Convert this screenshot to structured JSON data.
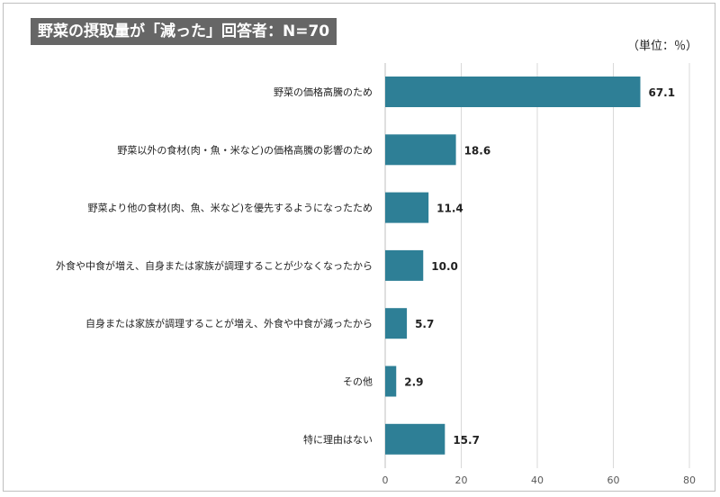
{
  "header": {
    "title": "野菜の摂取量が「減った」回答者：N=70",
    "unit": "（単位：％）"
  },
  "colors": {
    "bar": "#2e7f96",
    "grid": "#d9d9d9",
    "axis": "#bfbfbf"
  },
  "chart_data": {
    "type": "bar",
    "orientation": "horizontal",
    "categories": [
      "野菜の価格高騰のため",
      "野菜以外の食材(肉・魚・米など)の価格高騰の影響のため",
      "野菜より他の食材(肉、魚、米など)を優先するようになったため",
      "外食や中食が増え、自身または家族が調理することが少なくなったから",
      "自身または家族が調理することが増え、外食や中食が減ったから",
      "その他",
      "特に理由はない"
    ],
    "values": [
      67.1,
      18.6,
      11.4,
      10.0,
      5.7,
      2.9,
      15.7
    ],
    "value_labels": [
      "67.1",
      "18.6",
      "11.4",
      "10.0",
      "5.7",
      "2.9",
      "15.7"
    ],
    "xlim": [
      0,
      80
    ],
    "xticks": [
      0,
      20,
      40,
      60,
      80
    ],
    "grid": true
  }
}
